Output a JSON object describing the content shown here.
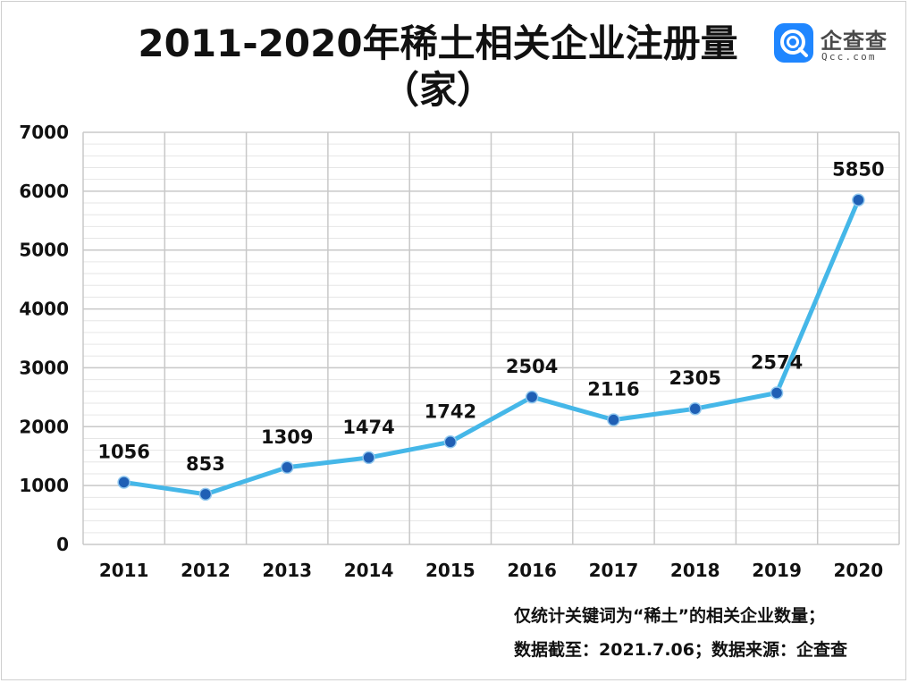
{
  "title_line1": "2011-2020年稀土相关企业注册量",
  "title_line2": "（家）",
  "logo": {
    "name": "企查查",
    "sub": "Qcc.com"
  },
  "notes": [
    "仅统计关键词为“稀土”的相关企业数量；",
    "数据截至：2021.7.06；数据来源：企查查"
  ],
  "colors": {
    "line": "#45b7e8",
    "marker": "#1f5fb5",
    "grid_major": "#c8c8c8",
    "grid_minor": "#e6e6e6",
    "brand": "#1f86ff"
  },
  "chart_data": {
    "type": "line",
    "categories": [
      "2011",
      "2012",
      "2013",
      "2014",
      "2015",
      "2016",
      "2017",
      "2018",
      "2019",
      "2020"
    ],
    "values": [
      1056,
      853,
      1309,
      1474,
      1742,
      2504,
      2116,
      2305,
      2574,
      5850
    ],
    "data_labels": [
      "1056",
      "853",
      "1309",
      "1474",
      "1742",
      "2504",
      "2116",
      "2305",
      "2574",
      "5850"
    ],
    "ylim": [
      0,
      7000
    ],
    "yticks": [
      "0",
      "1000",
      "2000",
      "3000",
      "4000",
      "5000",
      "6000",
      "7000"
    ],
    "minor_step": 200,
    "grid": true,
    "legend": "none",
    "xlabel": "",
    "ylabel": ""
  }
}
